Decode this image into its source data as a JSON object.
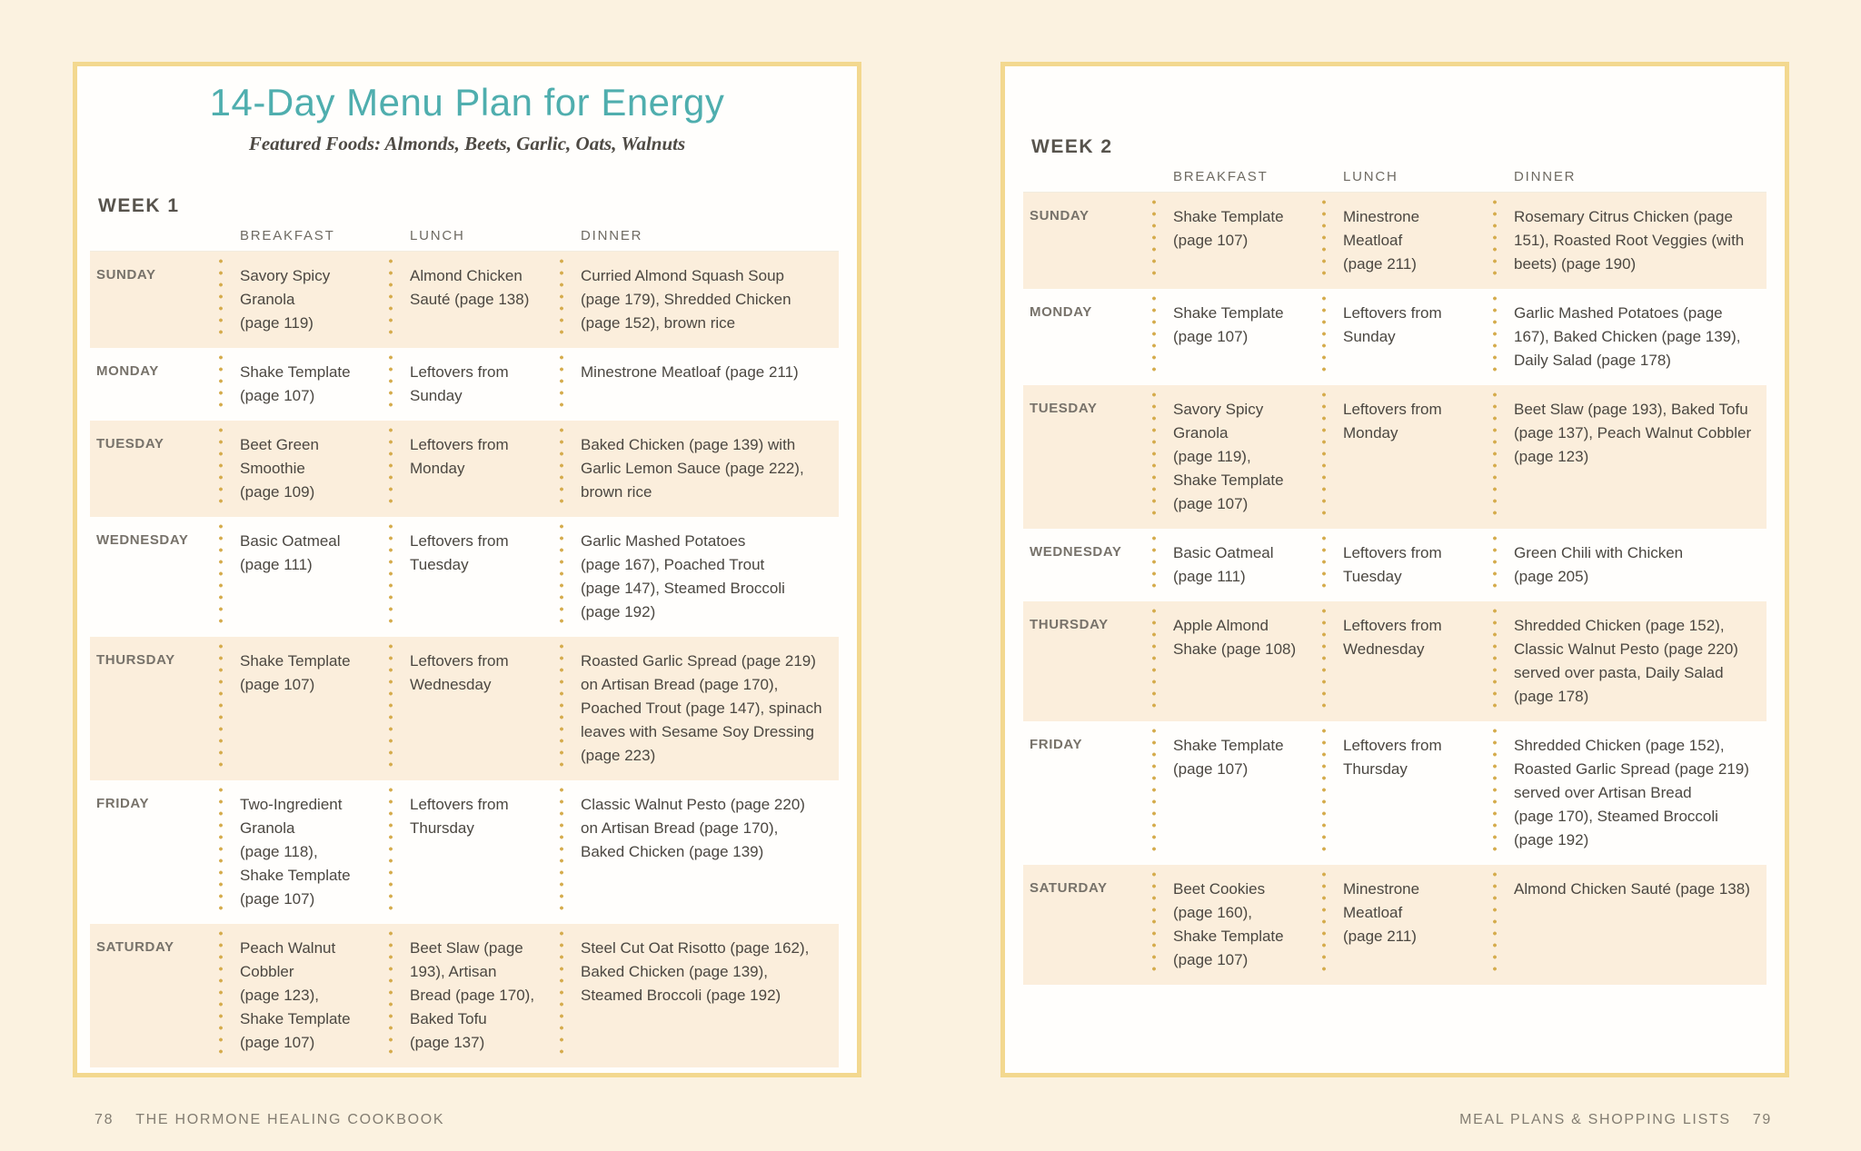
{
  "colors": {
    "background": "#fbf2e0",
    "card_border_gold": "#f3d88f",
    "row_highlight": "#fbeedc",
    "dot_gold": "#d5ac4d",
    "title_teal": "#4faeae",
    "body_text": "#4b4741",
    "label_gray": "#6f6b63"
  },
  "left_page": {
    "title": "14-Day Menu Plan for Energy",
    "subtitle": "Featured Foods: Almonds, Beets, Garlic, Oats, Walnuts",
    "week_label": "WEEK 1",
    "columns": [
      "BREAKFAST",
      "LUNCH",
      "DINNER"
    ],
    "rows": [
      {
        "day": "SUNDAY",
        "breakfast": "Savory Spicy Granola (page 119)",
        "lunch": "Almond Chicken Sauté (page 138)",
        "dinner": "Curried Almond Squash Soup (page 179), Shredded Chicken (page 152), brown rice"
      },
      {
        "day": "MONDAY",
        "breakfast": "Shake Template (page 107)",
        "lunch": "Leftovers from Sunday",
        "dinner": "Minestrone Meatloaf (page 211)"
      },
      {
        "day": "TUESDAY",
        "breakfast": "Beet Green Smoothie (page 109)",
        "lunch": "Leftovers from Monday",
        "dinner": "Baked Chicken (page 139) with Garlic Lemon Sauce (page 222), brown rice"
      },
      {
        "day": "WEDNESDAY",
        "breakfast": "Basic Oatmeal (page 111)",
        "lunch": "Leftovers from Tuesday",
        "dinner": "Garlic Mashed Potatoes (page 167), Poached Trout (page 147), Steamed Broccoli (page 192)"
      },
      {
        "day": "THURSDAY",
        "breakfast": "Shake Template (page 107)",
        "lunch": "Leftovers from Wednesday",
        "dinner": "Roasted Garlic Spread (page 219) on Artisan Bread (page 170), Poached Trout (page 147), spinach leaves with Sesame Soy Dressing (page 223)"
      },
      {
        "day": "FRIDAY",
        "breakfast": "Two-Ingredient Granola (page 118), Shake Template (page 107)",
        "lunch": "Leftovers from Thursday",
        "dinner": "Classic Walnut Pesto (page 220) on Artisan Bread (page 170), Baked Chicken (page 139)"
      },
      {
        "day": "SATURDAY",
        "breakfast": "Peach Walnut Cobbler (page 123), Shake Template (page 107)",
        "lunch": "Beet Slaw (page 193), Artisan Bread (page 170), Baked Tofu (page 137)",
        "dinner": "Steel Cut Oat Risotto (page 162), Baked Chicken (page 139), Steamed Broccoli (page 192)"
      }
    ],
    "footer": {
      "page_number": "78",
      "text": "THE HORMONE HEALING COOKBOOK"
    }
  },
  "right_page": {
    "week_label": "WEEK 2",
    "columns": [
      "BREAKFAST",
      "LUNCH",
      "DINNER"
    ],
    "rows": [
      {
        "day": "SUNDAY",
        "breakfast": "Shake Template (page 107)",
        "lunch": "Minestrone Meatloaf (page 211)",
        "dinner": "Rosemary Citrus Chicken (page 151), Roasted Root Veggies (with beets) (page 190)"
      },
      {
        "day": "MONDAY",
        "breakfast": "Shake Template (page 107)",
        "lunch": "Leftovers from Sunday",
        "dinner": "Garlic Mashed Potatoes (page 167), Baked Chicken (page 139), Daily Salad (page 178)"
      },
      {
        "day": "TUESDAY",
        "breakfast": "Savory Spicy Granola (page 119), Shake Template (page 107)",
        "lunch": "Leftovers from Monday",
        "dinner": "Beet Slaw (page 193), Baked Tofu (page 137), Peach Walnut Cobbler (page 123)"
      },
      {
        "day": "WEDNESDAY",
        "breakfast": "Basic Oatmeal (page 111)",
        "lunch": "Leftovers from Tuesday",
        "dinner": "Green Chili with Chicken (page 205)"
      },
      {
        "day": "THURSDAY",
        "breakfast": "Apple Almond Shake (page 108)",
        "lunch": "Leftovers from Wednesday",
        "dinner": "Shredded Chicken (page 152), Classic Walnut Pesto (page 220) served over pasta,  Daily Salad (page 178)"
      },
      {
        "day": "FRIDAY",
        "breakfast": "Shake Template (page 107)",
        "lunch": "Leftovers from Thursday",
        "dinner": "Shredded Chicken (page 152), Roasted Garlic Spread (page 219) served over Artisan Bread (page 170),  Steamed Broccoli (page 192)"
      },
      {
        "day": "SATURDAY",
        "breakfast": "Beet Cookies (page 160), Shake Template (page 107)",
        "lunch": "Minestrone Meatloaf (page 211)",
        "dinner": "Almond Chicken Sauté (page 138)"
      }
    ],
    "footer": {
      "text": "MEAL PLANS & SHOPPING LISTS",
      "page_number": "79"
    }
  }
}
